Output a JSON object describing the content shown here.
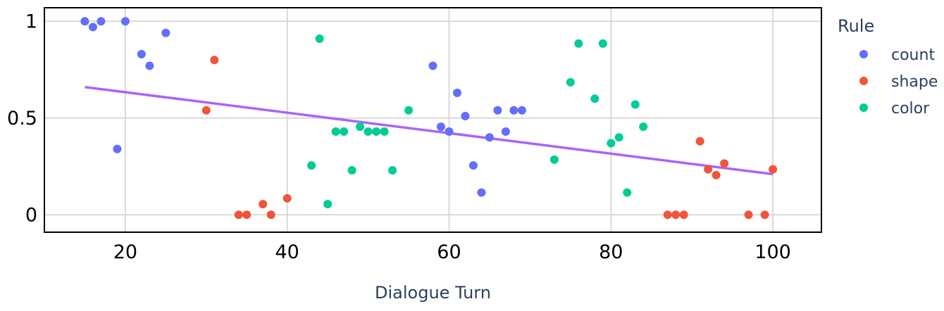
{
  "chart_data": {
    "type": "scatter",
    "title": "",
    "xlabel": "Dialogue Turn",
    "ylabel": "",
    "xlim": [
      10,
      106
    ],
    "ylim": [
      -0.09,
      1.07
    ],
    "x_ticks": [
      20,
      40,
      60,
      80,
      100
    ],
    "x_tick_labels": [
      "20",
      "40",
      "60",
      "80",
      "100"
    ],
    "y_ticks": [
      0,
      0.5,
      1
    ],
    "y_tick_labels": [
      "0",
      "0.5",
      "1"
    ],
    "grid": true,
    "legend": {
      "title": "Rule",
      "placement": "right"
    },
    "series": [
      {
        "name": "count",
        "color": "#636efa",
        "points": [
          [
            15,
            1.0
          ],
          [
            16,
            0.97
          ],
          [
            17,
            1.0
          ],
          [
            19,
            0.34
          ],
          [
            20,
            1.0
          ],
          [
            22,
            0.83
          ],
          [
            23,
            0.77
          ],
          [
            25,
            0.94
          ],
          [
            58,
            0.77
          ],
          [
            59,
            0.455
          ],
          [
            60,
            0.43
          ],
          [
            61,
            0.63
          ],
          [
            62,
            0.51
          ],
          [
            63,
            0.255
          ],
          [
            64,
            0.115
          ],
          [
            65,
            0.4
          ],
          [
            66,
            0.54
          ],
          [
            67,
            0.43
          ],
          [
            68,
            0.54
          ],
          [
            69,
            0.54
          ]
        ]
      },
      {
        "name": "shape",
        "color": "#ef553b",
        "points": [
          [
            30,
            0.54
          ],
          [
            31,
            0.8
          ],
          [
            34,
            0.0
          ],
          [
            35,
            0.0
          ],
          [
            37,
            0.055
          ],
          [
            38,
            0.0
          ],
          [
            40,
            0.085
          ],
          [
            87,
            0.0
          ],
          [
            88,
            0.0
          ],
          [
            89,
            0.0
          ],
          [
            91,
            0.38
          ],
          [
            92,
            0.235
          ],
          [
            93,
            0.205
          ],
          [
            94,
            0.265
          ],
          [
            97,
            0.0
          ],
          [
            99,
            0.0
          ],
          [
            100,
            0.235
          ]
        ]
      },
      {
        "name": "color",
        "color": "#00cc96",
        "points": [
          [
            43,
            0.255
          ],
          [
            44,
            0.91
          ],
          [
            45,
            0.055
          ],
          [
            46,
            0.43
          ],
          [
            47,
            0.43
          ],
          [
            48,
            0.23
          ],
          [
            49,
            0.455
          ],
          [
            50,
            0.43
          ],
          [
            51,
            0.43
          ],
          [
            52,
            0.43
          ],
          [
            53,
            0.23
          ],
          [
            55,
            0.54
          ],
          [
            73,
            0.285
          ],
          [
            75,
            0.685
          ],
          [
            76,
            0.885
          ],
          [
            78,
            0.6
          ],
          [
            79,
            0.885
          ],
          [
            80,
            0.37
          ],
          [
            81,
            0.4
          ],
          [
            82,
            0.115
          ],
          [
            83,
            0.57
          ],
          [
            84,
            0.455
          ]
        ]
      }
    ],
    "trendline": {
      "color": "#ab63fa",
      "x": [
        15,
        100
      ],
      "y": [
        0.66,
        0.21
      ]
    }
  }
}
